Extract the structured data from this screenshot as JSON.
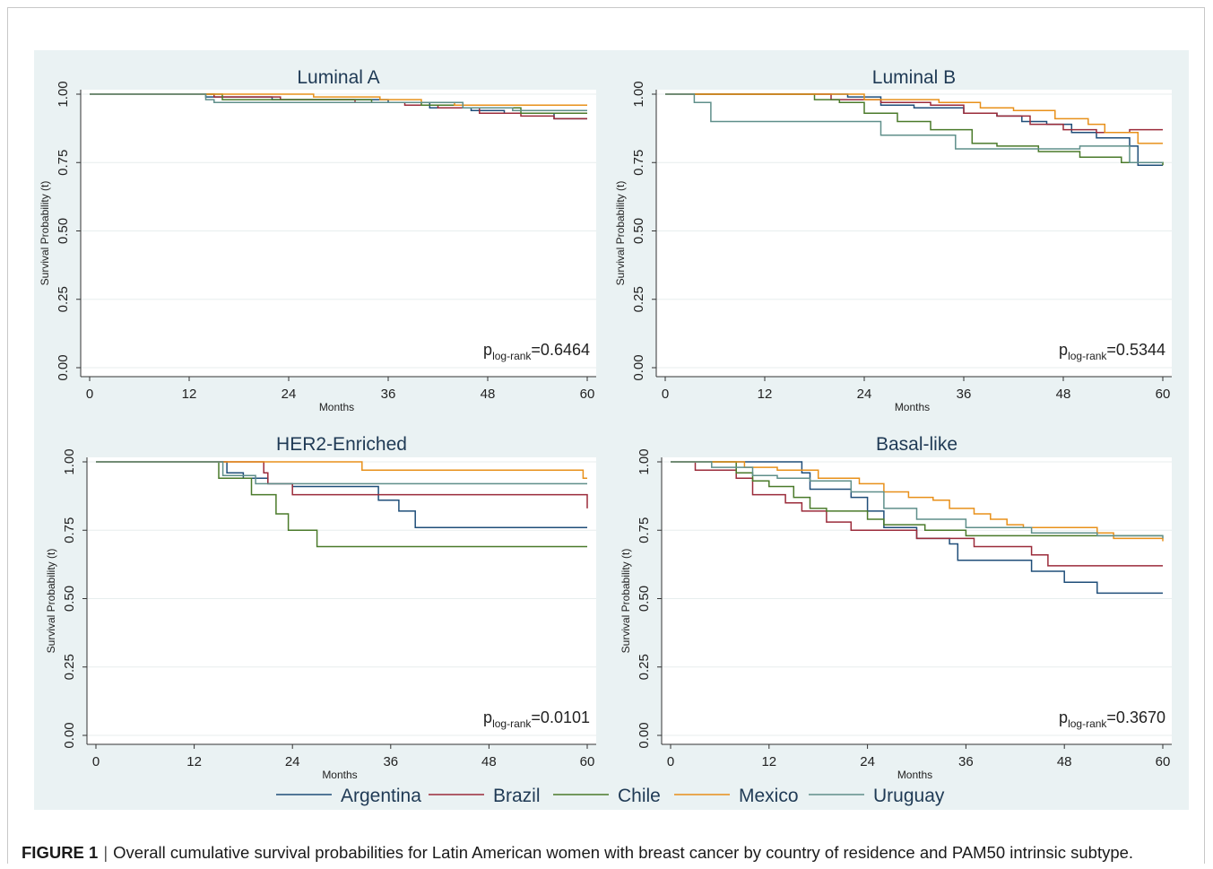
{
  "caption": {
    "label": "FIGURE 1",
    "separator": "|",
    "text": "Overall cumulative survival probabilities for Latin American women with breast cancer by country of residence and PAM50 intrinsic subtype."
  },
  "legend": [
    {
      "name": "Argentina",
      "color": "#1f4e79"
    },
    {
      "name": "Brazil",
      "color": "#9b2b3a"
    },
    {
      "name": "Chile",
      "color": "#4a7a2a"
    },
    {
      "name": "Mexico",
      "color": "#e8901a"
    },
    {
      "name": "Uruguay",
      "color": "#5f8f8a"
    }
  ],
  "chart_data": [
    {
      "type": "line",
      "title": "Luminal A",
      "xlabel": "Months",
      "ylabel": "Survival Probability (t)",
      "xlim": [
        0,
        60
      ],
      "ylim": [
        0,
        1
      ],
      "xticks": [
        "0",
        "12",
        "24",
        "36",
        "48",
        "60"
      ],
      "yticks": [
        "0.00",
        "0.25",
        "0.50",
        "0.75",
        "1.00"
      ],
      "annotation": {
        "p": "p",
        "sub": "log-rank",
        "value": "=0.6464"
      },
      "series": [
        {
          "name": "Argentina",
          "x": [
            0,
            14,
            22,
            30,
            36,
            41,
            46,
            50,
            56,
            60
          ],
          "y": [
            1,
            0.99,
            0.98,
            0.98,
            0.97,
            0.95,
            0.94,
            0.93,
            0.91,
            0.91
          ]
        },
        {
          "name": "Brazil",
          "x": [
            0,
            15,
            23,
            32,
            38,
            42,
            47,
            52,
            56,
            60
          ],
          "y": [
            1,
            0.99,
            0.98,
            0.97,
            0.96,
            0.95,
            0.93,
            0.92,
            0.91,
            0.91
          ]
        },
        {
          "name": "Chile",
          "x": [
            0,
            16,
            25,
            34,
            40,
            45,
            52,
            60
          ],
          "y": [
            1,
            0.98,
            0.98,
            0.97,
            0.96,
            0.95,
            0.93,
            0.93
          ]
        },
        {
          "name": "Mexico",
          "x": [
            0,
            15,
            27,
            35,
            40,
            44,
            49,
            60
          ],
          "y": [
            1,
            1,
            0.99,
            0.98,
            0.97,
            0.96,
            0.96,
            0.96
          ]
        },
        {
          "name": "Uruguay",
          "x": [
            0,
            14,
            15,
            37,
            45,
            51,
            60
          ],
          "y": [
            1,
            0.98,
            0.97,
            0.97,
            0.95,
            0.94,
            0.94
          ]
        }
      ]
    },
    {
      "type": "line",
      "title": "Luminal B",
      "xlabel": "Months",
      "ylabel": "Survival Probability (t)",
      "xlim": [
        0,
        60
      ],
      "ylim": [
        0,
        1
      ],
      "xticks": [
        "0",
        "12",
        "24",
        "36",
        "48",
        "60"
      ],
      "yticks": [
        "0.00",
        "0.25",
        "0.50",
        "0.75",
        "1.00"
      ],
      "annotation": {
        "p": "p",
        "sub": "log-rank",
        "value": "=0.5344"
      },
      "series": [
        {
          "name": "Argentina",
          "x": [
            0,
            19,
            22,
            26,
            30,
            36,
            40,
            43,
            46,
            49,
            52,
            56,
            57,
            60
          ],
          "y": [
            1,
            1,
            0.99,
            0.96,
            0.95,
            0.93,
            0.92,
            0.9,
            0.89,
            0.86,
            0.84,
            0.81,
            0.74,
            0.74
          ]
        },
        {
          "name": "Brazil",
          "x": [
            0,
            20,
            26,
            32,
            36,
            40,
            44,
            48,
            52,
            56,
            60
          ],
          "y": [
            1,
            0.98,
            0.97,
            0.96,
            0.93,
            0.92,
            0.89,
            0.87,
            0.86,
            0.87,
            0.87
          ]
        },
        {
          "name": "Chile",
          "x": [
            0,
            15,
            18,
            21,
            24,
            28,
            32,
            37,
            40,
            45,
            50,
            55,
            60
          ],
          "y": [
            1,
            1,
            0.98,
            0.97,
            0.93,
            0.9,
            0.87,
            0.82,
            0.81,
            0.79,
            0.77,
            0.75,
            0.74
          ]
        },
        {
          "name": "Mexico",
          "x": [
            0,
            19,
            24,
            33,
            38,
            42,
            47,
            50,
            51,
            53,
            57,
            60
          ],
          "y": [
            1,
            1,
            0.98,
            0.97,
            0.95,
            0.94,
            0.91,
            0.91,
            0.89,
            0.86,
            0.82,
            0.82
          ]
        },
        {
          "name": "Uruguay",
          "x": [
            0,
            3.5,
            5.5,
            24,
            26,
            35,
            44,
            50,
            56,
            60
          ],
          "y": [
            1,
            0.97,
            0.9,
            0.9,
            0.85,
            0.8,
            0.8,
            0.81,
            0.75,
            0.75
          ]
        }
      ]
    },
    {
      "type": "line",
      "title": "HER2-Enriched",
      "xlabel": "Months",
      "ylabel": "Survival Probability (t)",
      "xlim": [
        0,
        60
      ],
      "ylim": [
        0,
        1
      ],
      "xticks": [
        "0",
        "12",
        "24",
        "36",
        "48",
        "60"
      ],
      "yticks": [
        "0.00",
        "0.25",
        "0.50",
        "0.75",
        "1.00"
      ],
      "annotation": {
        "p": "p",
        "sub": "log-rank",
        "value": "=0.0101"
      },
      "series": [
        {
          "name": "Argentina",
          "x": [
            0,
            15.5,
            16,
            18,
            21,
            24,
            30,
            34.5,
            37,
            39,
            60
          ],
          "y": [
            1,
            1,
            0.96,
            0.94,
            0.92,
            0.91,
            0.91,
            0.86,
            0.82,
            0.76,
            0.76
          ]
        },
        {
          "name": "Brazil",
          "x": [
            0,
            20,
            20.5,
            21,
            22,
            24,
            60
          ],
          "y": [
            1,
            1,
            0.96,
            0.92,
            0.92,
            0.88,
            0.83
          ]
        },
        {
          "name": "Chile",
          "x": [
            0,
            15,
            17,
            19,
            22,
            23.5,
            27,
            60
          ],
          "y": [
            1,
            0.94,
            0.94,
            0.88,
            0.81,
            0.75,
            0.69,
            0.69
          ]
        },
        {
          "name": "Mexico",
          "x": [
            0,
            32.5,
            59.5,
            60
          ],
          "y": [
            1,
            0.97,
            0.94,
            0.94
          ]
        },
        {
          "name": "Uruguay",
          "x": [
            0,
            15.5,
            18,
            19.5,
            60
          ],
          "y": [
            1,
            0.95,
            0.95,
            0.92,
            0.92
          ]
        }
      ]
    },
    {
      "type": "line",
      "title": "Basal-like",
      "xlabel": "Months",
      "ylabel": "Survival Probability (t)",
      "xlim": [
        0,
        60
      ],
      "ylim": [
        0,
        1
      ],
      "xticks": [
        "0",
        "12",
        "24",
        "36",
        "48",
        "60"
      ],
      "yticks": [
        "0.00",
        "0.25",
        "0.50",
        "0.75",
        "1.00"
      ],
      "annotation": {
        "p": "p",
        "sub": "log-rank",
        "value": "=0.3670"
      },
      "series": [
        {
          "name": "Argentina",
          "x": [
            0,
            15,
            16,
            17,
            22,
            24,
            26,
            30,
            34,
            35,
            40,
            44,
            48,
            52,
            60
          ],
          "y": [
            1,
            1,
            0.96,
            0.9,
            0.87,
            0.82,
            0.76,
            0.72,
            0.7,
            0.64,
            0.64,
            0.6,
            0.56,
            0.52,
            0.52
          ]
        },
        {
          "name": "Brazil",
          "x": [
            0,
            3,
            8,
            10,
            14,
            16,
            19,
            22,
            26,
            30,
            37,
            44,
            46,
            60
          ],
          "y": [
            1,
            0.97,
            0.94,
            0.88,
            0.85,
            0.82,
            0.78,
            0.75,
            0.75,
            0.72,
            0.69,
            0.66,
            0.62,
            0.62
          ]
        },
        {
          "name": "Chile",
          "x": [
            0,
            6,
            8,
            10,
            12,
            15,
            17,
            19,
            24,
            26,
            31,
            36,
            52,
            60
          ],
          "y": [
            1,
            1,
            0.96,
            0.93,
            0.91,
            0.87,
            0.83,
            0.82,
            0.79,
            0.77,
            0.75,
            0.73,
            0.73,
            0.73
          ]
        },
        {
          "name": "Mexico",
          "x": [
            0,
            9,
            13,
            18,
            23,
            26,
            29,
            32,
            34,
            37,
            39,
            41,
            43,
            52,
            54,
            60
          ],
          "y": [
            1,
            0.98,
            0.97,
            0.94,
            0.92,
            0.89,
            0.87,
            0.86,
            0.83,
            0.81,
            0.79,
            0.77,
            0.76,
            0.74,
            0.72,
            0.71
          ]
        },
        {
          "name": "Uruguay",
          "x": [
            0,
            5,
            10,
            13,
            17,
            22,
            26,
            30,
            36,
            44,
            52,
            60
          ],
          "y": [
            1,
            0.98,
            0.95,
            0.94,
            0.93,
            0.89,
            0.83,
            0.79,
            0.76,
            0.74,
            0.73,
            0.72
          ]
        }
      ]
    }
  ]
}
